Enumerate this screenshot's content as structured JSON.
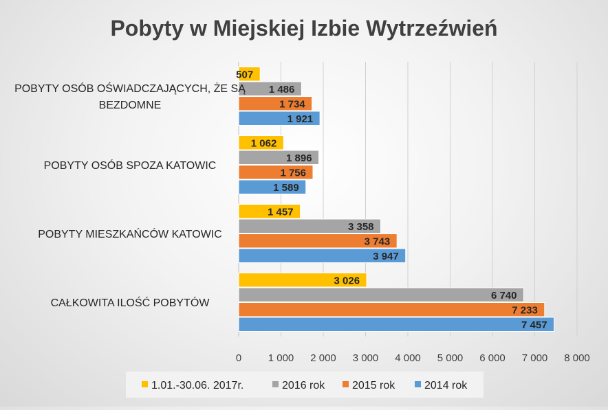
{
  "chart_data": {
    "type": "bar",
    "orientation": "horizontal",
    "title": "Pobyty w Miejskiej Izbie Wytrzeźwień",
    "categories": [
      "CAŁKOWITA ILOŚĆ POBYTÓW",
      "POBYTY MIESZKAŃCÓW KATOWIC",
      "POBYTY OSÓB SPOZA  KATOWIC",
      "POBYTY OSÓB OŚWIADCZAJĄCYCH, ŻE SĄ BEZDOMNE"
    ],
    "series": [
      {
        "name": "2014 rok",
        "color": "#5b9bd5",
        "values": [
          7457,
          3947,
          1589,
          1921
        ],
        "labels": [
          "7 457",
          "3 947",
          "1 589",
          "1 921"
        ]
      },
      {
        "name": "2015 rok",
        "color": "#ed7d31",
        "values": [
          7233,
          3743,
          1756,
          1734
        ],
        "labels": [
          "7 233",
          "3 743",
          "1 756",
          "1 734"
        ]
      },
      {
        "name": "2016 rok",
        "color": "#a5a5a5",
        "values": [
          6740,
          3358,
          1896,
          1486
        ],
        "labels": [
          "6 740",
          "3 358",
          "1 896",
          "1 486"
        ]
      },
      {
        "name": "1.01.-30.06.  2017r.",
        "color": "#ffc000",
        "values": [
          3026,
          1457,
          1062,
          507
        ],
        "labels": [
          "3 026",
          "1 457",
          "1 062",
          "507"
        ]
      }
    ],
    "legend_order": [
      "1.01.-30.06.  2017r.",
      "2016 rok",
      "2015 rok",
      "2014 rok"
    ],
    "xlim": [
      0,
      8000
    ],
    "xticks": [
      0,
      1000,
      2000,
      3000,
      4000,
      5000,
      6000,
      7000,
      8000
    ],
    "xtick_labels": [
      "0",
      "1 000",
      "2 000",
      "3 000",
      "4 000",
      "5 000",
      "6 000",
      "7 000",
      "8 000"
    ],
    "grid": true,
    "legend_position": "bottom"
  }
}
